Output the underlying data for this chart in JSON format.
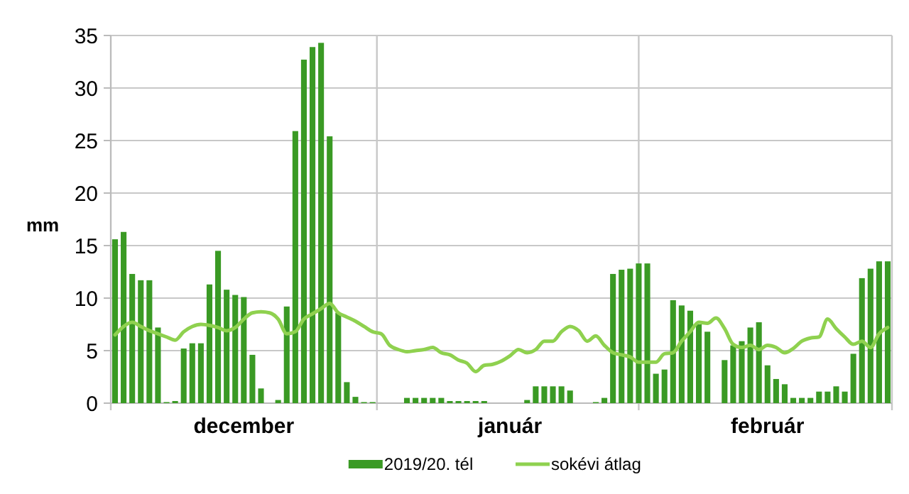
{
  "chart_data": {
    "type": "bar",
    "ylabel": "mm",
    "categories": [
      null,
      null,
      null,
      null,
      null,
      null,
      null,
      null,
      null,
      null,
      null,
      null,
      null,
      null,
      null,
      "december",
      null,
      null,
      null,
      null,
      null,
      null,
      null,
      null,
      null,
      null,
      null,
      null,
      null,
      null,
      null,
      null,
      null,
      null,
      null,
      null,
      null,
      null,
      null,
      null,
      null,
      null,
      null,
      null,
      null,
      null,
      "január",
      null,
      null,
      null,
      null,
      null,
      null,
      null,
      null,
      null,
      null,
      null,
      null,
      null,
      null,
      null,
      null,
      null,
      null,
      null,
      null,
      null,
      null,
      null,
      null,
      null,
      null,
      null,
      null,
      null,
      "február",
      null,
      null,
      null,
      null,
      null,
      null,
      null,
      null,
      null,
      null,
      null,
      null,
      null,
      null
    ],
    "series": [
      {
        "name": "2019/20. tél",
        "color": "#3a9a24",
        "values": [
          15.6,
          16.3,
          12.3,
          11.7,
          11.7,
          7.2,
          0.1,
          0.2,
          5.2,
          5.7,
          5.7,
          11.3,
          14.5,
          10.8,
          10.3,
          10.1,
          4.6,
          1.4,
          0,
          0.3,
          9.2,
          25.9,
          32.7,
          33.9,
          34.3,
          25.4,
          8.6,
          2.0,
          0.6,
          0.1,
          0.1,
          0,
          0,
          0,
          0.5,
          0.5,
          0.5,
          0.5,
          0.5,
          0.2,
          0.2,
          0.2,
          0.2,
          0.2,
          0,
          0,
          0,
          0,
          0.3,
          1.6,
          1.6,
          1.6,
          1.6,
          1.2,
          0,
          0,
          0.1,
          0.5,
          12.3,
          12.7,
          12.8,
          13.3,
          13.3,
          2.8,
          3.2,
          9.8,
          9.3,
          8.8,
          7.5,
          6.8,
          0,
          4.1,
          5.5,
          5.9,
          7.2,
          7.7,
          3.6,
          2.3,
          1.8,
          0.5,
          0.5,
          0.5,
          1.1,
          1.1,
          1.6,
          1.1,
          4.7,
          11.9,
          12.8,
          13.5,
          13.5
        ]
      },
      {
        "name": "sokévi átlag",
        "type": "line",
        "color": "#8fd14f",
        "values": [
          6.5,
          7.3,
          7.7,
          7.3,
          6.9,
          6.6,
          6.3,
          6.0,
          6.8,
          7.3,
          7.5,
          7.4,
          7.2,
          6.9,
          7.2,
          8.0,
          8.6,
          8.7,
          8.6,
          8.0,
          6.6,
          6.8,
          8.0,
          8.5,
          9.0,
          9.5,
          8.6,
          8.2,
          7.8,
          7.3,
          6.8,
          6.6,
          5.5,
          5.1,
          4.9,
          5.0,
          5.1,
          5.3,
          4.8,
          4.6,
          4.1,
          3.8,
          3.0,
          3.6,
          3.7,
          4.0,
          4.5,
          5.1,
          4.8,
          5.1,
          5.9,
          5.9,
          6.8,
          7.3,
          6.9,
          5.9,
          6.4,
          5.5,
          4.8,
          4.6,
          4.4,
          3.9,
          3.9,
          3.9,
          4.7,
          4.8,
          5.9,
          6.8,
          7.7,
          7.6,
          8.1,
          7.1,
          5.6,
          5.3,
          5.5,
          5.1,
          5.5,
          5.3,
          4.8,
          5.2,
          5.9,
          6.2,
          6.3,
          8.0,
          7.1,
          6.3,
          5.6,
          5.9,
          5.3,
          6.6,
          7.2
        ]
      }
    ],
    "ylim": [
      0,
      35
    ],
    "yticks": [
      0,
      5,
      10,
      15,
      20,
      25,
      30,
      35
    ],
    "grid": true,
    "legend": "bottom"
  }
}
